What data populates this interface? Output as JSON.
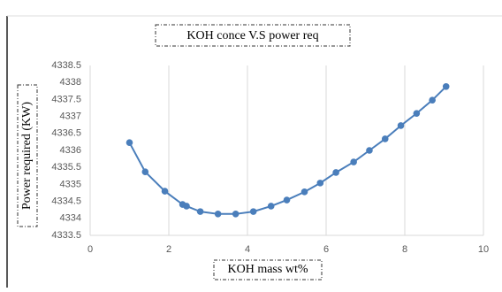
{
  "chart_data": {
    "type": "line",
    "title": "KOH conce V.S power req",
    "x_label": "KOH mass wt%",
    "y_label": "Power required (KW)",
    "series": [
      {
        "name": "Power",
        "color": "#4a7ebb",
        "x": [
          1.0,
          1.4,
          1.9,
          2.35,
          2.45,
          2.8,
          3.25,
          3.7,
          4.15,
          4.6,
          5.0,
          5.45,
          5.85,
          6.25,
          6.7,
          7.1,
          7.5,
          7.9,
          8.3,
          8.7,
          9.05
        ],
        "values": [
          4336.23,
          4335.37,
          4334.8,
          4334.41,
          4334.36,
          4334.2,
          4334.13,
          4334.13,
          4334.2,
          4334.36,
          4334.54,
          4334.78,
          4335.04,
          4335.35,
          4335.66,
          4336.0,
          4336.34,
          4336.73,
          4337.09,
          4337.48,
          4337.88
        ]
      }
    ],
    "xlim": [
      0,
      10
    ],
    "xticks": [
      0,
      2,
      4,
      6,
      8,
      10
    ],
    "ylim": [
      4333.5,
      4338.5
    ],
    "yticks": [
      4333.5,
      4334,
      4334.5,
      4335,
      4335.5,
      4336,
      4336.5,
      4337,
      4337.5,
      4338,
      4338.5
    ],
    "grid": "x"
  }
}
